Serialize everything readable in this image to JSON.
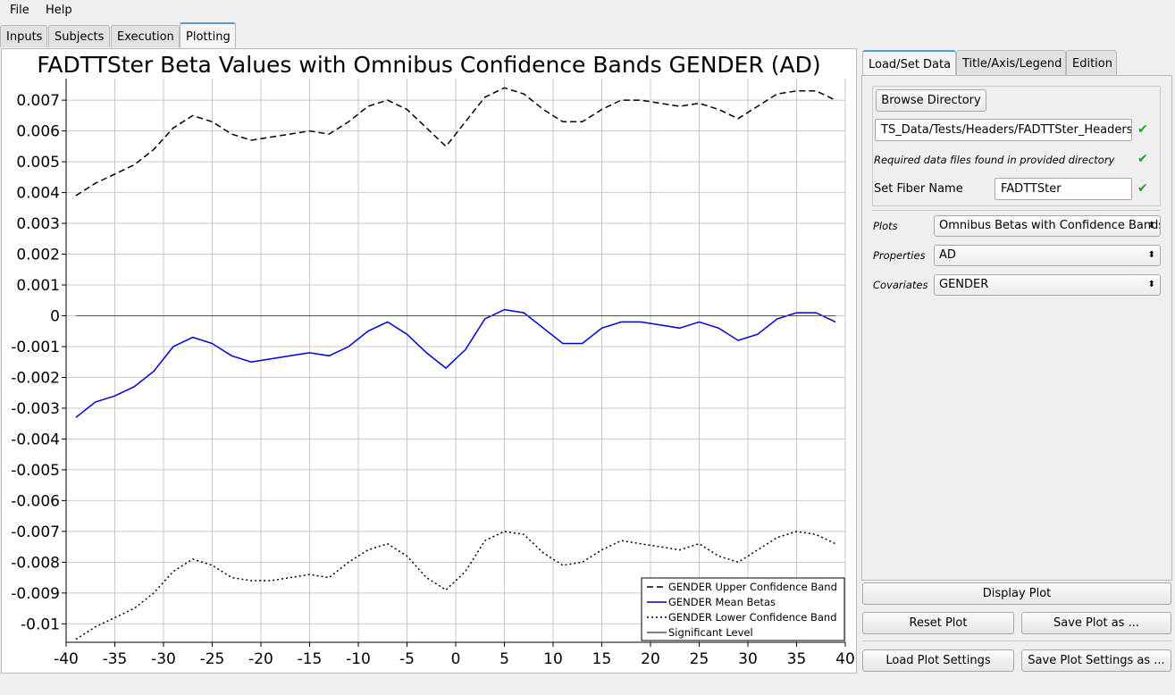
{
  "menu": {
    "file": "File",
    "help": "Help"
  },
  "main_tabs": [
    "Inputs",
    "Subjects",
    "Execution",
    "Plotting"
  ],
  "right_tabs": [
    "Load/Set Data",
    "Title/Axis/Legend",
    "Edition"
  ],
  "load": {
    "browse_label": "Browse Directory",
    "directory_value": "TS_Data/Tests/Headers/FADTTSter_Headers",
    "found_message": "Required data files found in provided directory",
    "fiber_label": "Set Fiber Name",
    "fiber_value": "FADTTSter",
    "plots_label": "Plots",
    "plots_value": "Omnibus Betas with Confidence Bands",
    "properties_label": "Properties",
    "properties_value": "AD",
    "covariates_label": "Covariates",
    "covariates_value": "GENDER"
  },
  "buttons": {
    "display_plot": "Display Plot",
    "reset_plot": "Reset Plot",
    "save_plot_as": "Save Plot as ...",
    "load_plot_settings": "Load Plot Settings",
    "save_plot_settings_as": "Save Plot Settings as ..."
  },
  "colors": {
    "mean": "#0000cc",
    "bands": "#000000",
    "significant": "#555555"
  },
  "icons": {
    "check": "check-icon",
    "dropdown": "updown-arrow-icon"
  },
  "chart_data": {
    "type": "line",
    "title": "FADTTSter Beta Values with Omnibus Confidence Bands GENDER (AD)",
    "xlabel": "",
    "ylabel": "",
    "xlim": [
      -40,
      40
    ],
    "ylim": [
      -0.0106,
      0.0077
    ],
    "xticks": [
      -40,
      -35,
      -30,
      -25,
      -20,
      -15,
      -10,
      -5,
      0,
      5,
      10,
      15,
      20,
      25,
      30,
      35,
      40
    ],
    "yticks": [
      0.007,
      0.006,
      0.005,
      0.004,
      0.003,
      0.002,
      0.001,
      0,
      -0.001,
      -0.002,
      -0.003,
      -0.004,
      -0.005,
      -0.006,
      -0.007,
      -0.008,
      -0.009,
      -0.01
    ],
    "ytick_labels": [
      "0.007",
      "0.006",
      "0.005",
      "0.004",
      "0.003",
      "0.002",
      "0.001",
      "0",
      "-0.001",
      "-0.002",
      "-0.003",
      "-0.004",
      "-0.005",
      "-0.006",
      "-0.007",
      "-0.008",
      "-0.009",
      "-0.01"
    ],
    "grid": true,
    "legend_position": "bottom-right",
    "series": [
      {
        "name": "GENDER Upper Confidence Band",
        "style": "dashed",
        "color": "#000000",
        "x": [
          -39,
          -37,
          -35,
          -33,
          -31,
          -29,
          -27,
          -25,
          -23,
          -21,
          -19,
          -17,
          -15,
          -13,
          -11,
          -9,
          -7,
          -5,
          -3,
          -1,
          1,
          3,
          5,
          7,
          9,
          11,
          13,
          15,
          17,
          19,
          21,
          23,
          25,
          27,
          29,
          31,
          33,
          35,
          37,
          39
        ],
        "y": [
          0.0039,
          0.0043,
          0.0046,
          0.0049,
          0.0054,
          0.0061,
          0.0065,
          0.0063,
          0.0059,
          0.0057,
          0.0058,
          0.0059,
          0.006,
          0.0059,
          0.0063,
          0.0068,
          0.007,
          0.0067,
          0.0061,
          0.0055,
          0.0063,
          0.0071,
          0.0074,
          0.0072,
          0.0067,
          0.0063,
          0.0063,
          0.0067,
          0.007,
          0.007,
          0.0069,
          0.0068,
          0.0069,
          0.0067,
          0.0064,
          0.0068,
          0.0072,
          0.0073,
          0.0073,
          0.007
        ]
      },
      {
        "name": "GENDER Mean Betas",
        "style": "solid",
        "color": "#0000cc",
        "x": [
          -39,
          -37,
          -35,
          -33,
          -31,
          -29,
          -27,
          -25,
          -23,
          -21,
          -19,
          -17,
          -15,
          -13,
          -11,
          -9,
          -7,
          -5,
          -3,
          -1,
          1,
          3,
          5,
          7,
          9,
          11,
          13,
          15,
          17,
          19,
          21,
          23,
          25,
          27,
          29,
          31,
          33,
          35,
          37,
          39
        ],
        "y": [
          -0.0033,
          -0.0028,
          -0.0026,
          -0.0023,
          -0.0018,
          -0.001,
          -0.0007,
          -0.0009,
          -0.0013,
          -0.0015,
          -0.0014,
          -0.0013,
          -0.0012,
          -0.0013,
          -0.001,
          -0.0005,
          -0.0002,
          -0.0006,
          -0.0012,
          -0.0017,
          -0.0011,
          -0.0001,
          0.0002,
          0.0001,
          -0.0004,
          -0.0009,
          -0.0009,
          -0.0004,
          -0.0002,
          -0.0002,
          -0.0003,
          -0.0004,
          -0.0002,
          -0.0004,
          -0.0008,
          -0.0006,
          -0.0001,
          0.0001,
          0.0001,
          -0.0002
        ]
      },
      {
        "name": "GENDER Lower Confidence Band",
        "style": "dotted",
        "color": "#000000",
        "x": [
          -39,
          -37,
          -35,
          -33,
          -31,
          -29,
          -27,
          -25,
          -23,
          -21,
          -19,
          -17,
          -15,
          -13,
          -11,
          -9,
          -7,
          -5,
          -3,
          -1,
          1,
          3,
          5,
          7,
          9,
          11,
          13,
          15,
          17,
          19,
          21,
          23,
          25,
          27,
          29,
          31,
          33,
          35,
          37,
          39
        ],
        "y": [
          -0.0105,
          -0.0101,
          -0.0098,
          -0.0095,
          -0.009,
          -0.0083,
          -0.0079,
          -0.0081,
          -0.0085,
          -0.0086,
          -0.0086,
          -0.0085,
          -0.0084,
          -0.0085,
          -0.008,
          -0.0076,
          -0.0074,
          -0.0078,
          -0.0085,
          -0.0089,
          -0.0083,
          -0.0073,
          -0.007,
          -0.0071,
          -0.0077,
          -0.0081,
          -0.008,
          -0.0076,
          -0.0073,
          -0.0074,
          -0.0075,
          -0.0076,
          -0.0074,
          -0.0078,
          -0.008,
          -0.0076,
          -0.0072,
          -0.007,
          -0.0071,
          -0.0074
        ]
      },
      {
        "name": "Significant Level",
        "style": "solid",
        "color": "#555555",
        "x": [
          -39,
          39
        ],
        "y": [
          0,
          0
        ]
      }
    ]
  }
}
